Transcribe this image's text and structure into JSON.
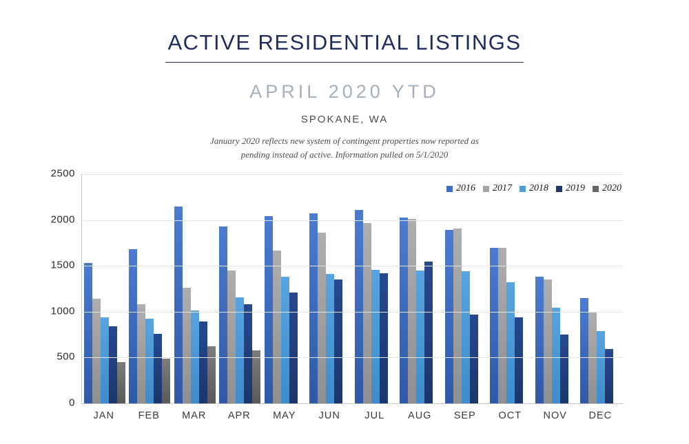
{
  "header": {
    "title": "ACTIVE RESIDENTIAL LISTINGS",
    "subtitle": "APRIL 2020 YTD",
    "location": "SPOKANE, WA",
    "note_line1": "January 2020 reflects new system of contingent properties now reported as",
    "note_line2": "pending instead of active.  Information pulled on 5/1/2020"
  },
  "colors": {
    "title_navy": "#1d2b5e",
    "subtitle_gray_blue": "#a4b0bf",
    "gridline": "#e4e4e4",
    "axis_line": "#c9c9c9"
  },
  "chart_data": {
    "type": "bar",
    "title": "",
    "xlabel": "",
    "ylabel": "",
    "ylim": [
      0,
      2500
    ],
    "yticks": [
      0,
      500,
      1000,
      1500,
      2000,
      2500
    ],
    "grid": true,
    "legend_position": "top-right",
    "categories": [
      "JAN",
      "FEB",
      "MAR",
      "APR",
      "MAY",
      "JUN",
      "JUL",
      "AUG",
      "SEP",
      "OCT",
      "NOV",
      "DEC"
    ],
    "series": [
      {
        "name": "2016",
        "color": "#3e6dc2",
        "gradient_top": "#4c7bd1",
        "gradient_bottom": "#2e59a7",
        "values": [
          1530,
          1680,
          2150,
          1930,
          2040,
          2070,
          2110,
          2030,
          1890,
          1700,
          1380,
          1150
        ]
      },
      {
        "name": "2017",
        "color": "#a5a5a5",
        "gradient_top": "#aeaeae",
        "gradient_bottom": "#8f8f8f",
        "values": [
          1140,
          1080,
          1260,
          1450,
          1670,
          1860,
          1970,
          2010,
          1910,
          1700,
          1350,
          1000
        ]
      },
      {
        "name": "2018",
        "color": "#4e9cd8",
        "gradient_top": "#58a4e0",
        "gradient_bottom": "#3e8ccb",
        "values": [
          940,
          920,
          1010,
          1160,
          1380,
          1410,
          1460,
          1450,
          1440,
          1320,
          1040,
          790
        ]
      },
      {
        "name": "2019",
        "color": "#1f3864",
        "gradient_top": "#26498f",
        "gradient_bottom": "#1b366b",
        "values": [
          840,
          760,
          890,
          1080,
          1210,
          1350,
          1420,
          1550,
          970,
          940,
          750,
          590
        ]
      },
      {
        "name": "2020",
        "color": "#666664",
        "gradient_top": "#7d7d7b",
        "gradient_bottom": "#5a5a58",
        "values": [
          450,
          490,
          620,
          580,
          null,
          null,
          null,
          null,
          null,
          null,
          null,
          null
        ]
      }
    ]
  }
}
